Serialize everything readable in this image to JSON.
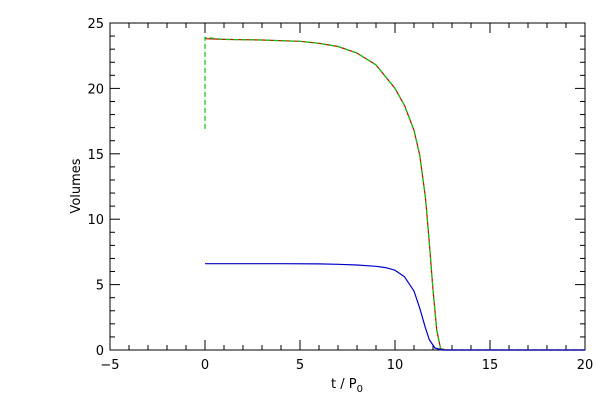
{
  "chart_data": {
    "type": "line",
    "title": "",
    "xlabel": "t / P",
    "xlabel_sub": "0",
    "ylabel": "Volumes",
    "xlim": [
      -5,
      20
    ],
    "ylim": [
      0,
      25
    ],
    "xticks": [
      -5,
      0,
      5,
      10,
      15,
      20
    ],
    "yticks": [
      0,
      5,
      10,
      15,
      20,
      25
    ],
    "xtick_labels": [
      "−5",
      "0",
      "5",
      "10",
      "15",
      "20"
    ],
    "ytick_labels": [
      "0",
      "5",
      "10",
      "15",
      "20",
      "25"
    ],
    "grid": false,
    "legend": "none",
    "series": [
      {
        "color": "#cc0000",
        "style": "solid",
        "points": [
          [
            0,
            23.8
          ],
          [
            1,
            23.75
          ],
          [
            2,
            23.72
          ],
          [
            3,
            23.7
          ],
          [
            4,
            23.65
          ],
          [
            5,
            23.6
          ],
          [
            6,
            23.45
          ],
          [
            7,
            23.2
          ],
          [
            8,
            22.7
          ],
          [
            9,
            21.8
          ],
          [
            10,
            20.0
          ],
          [
            10.5,
            18.7
          ],
          [
            11,
            16.8
          ],
          [
            11.3,
            14.9
          ],
          [
            11.6,
            11.7
          ],
          [
            11.8,
            8.3
          ],
          [
            12.0,
            4.6
          ],
          [
            12.2,
            1.5
          ],
          [
            12.4,
            0.1
          ],
          [
            12.7,
            0
          ],
          [
            20,
            0
          ]
        ]
      },
      {
        "color": "#00cc00",
        "style": "dashed",
        "points": [
          [
            0,
            16.9
          ],
          [
            0,
            23.9
          ],
          [
            1,
            23.75
          ],
          [
            2,
            23.72
          ],
          [
            3,
            23.7
          ],
          [
            4,
            23.65
          ],
          [
            5,
            23.6
          ],
          [
            6,
            23.45
          ],
          [
            7,
            23.2
          ],
          [
            8,
            22.7
          ],
          [
            9,
            21.8
          ],
          [
            10,
            20.0
          ],
          [
            10.5,
            18.7
          ],
          [
            11,
            16.8
          ],
          [
            11.3,
            14.9
          ],
          [
            11.6,
            11.7
          ],
          [
            11.8,
            8.3
          ],
          [
            12.0,
            4.6
          ],
          [
            12.2,
            1.5
          ],
          [
            12.4,
            0.1
          ],
          [
            12.7,
            0
          ],
          [
            20,
            0
          ]
        ]
      },
      {
        "color": "#0000cc",
        "style": "solid",
        "points": [
          [
            0,
            6.6
          ],
          [
            2,
            6.6
          ],
          [
            4,
            6.6
          ],
          [
            6,
            6.58
          ],
          [
            7,
            6.55
          ],
          [
            8,
            6.5
          ],
          [
            9,
            6.4
          ],
          [
            9.5,
            6.3
          ],
          [
            10,
            6.1
          ],
          [
            10.5,
            5.6
          ],
          [
            11,
            4.5
          ],
          [
            11.3,
            3.2
          ],
          [
            11.6,
            1.7
          ],
          [
            11.8,
            0.8
          ],
          [
            12.1,
            0.15
          ],
          [
            12.5,
            0
          ],
          [
            20,
            0
          ]
        ]
      }
    ]
  }
}
